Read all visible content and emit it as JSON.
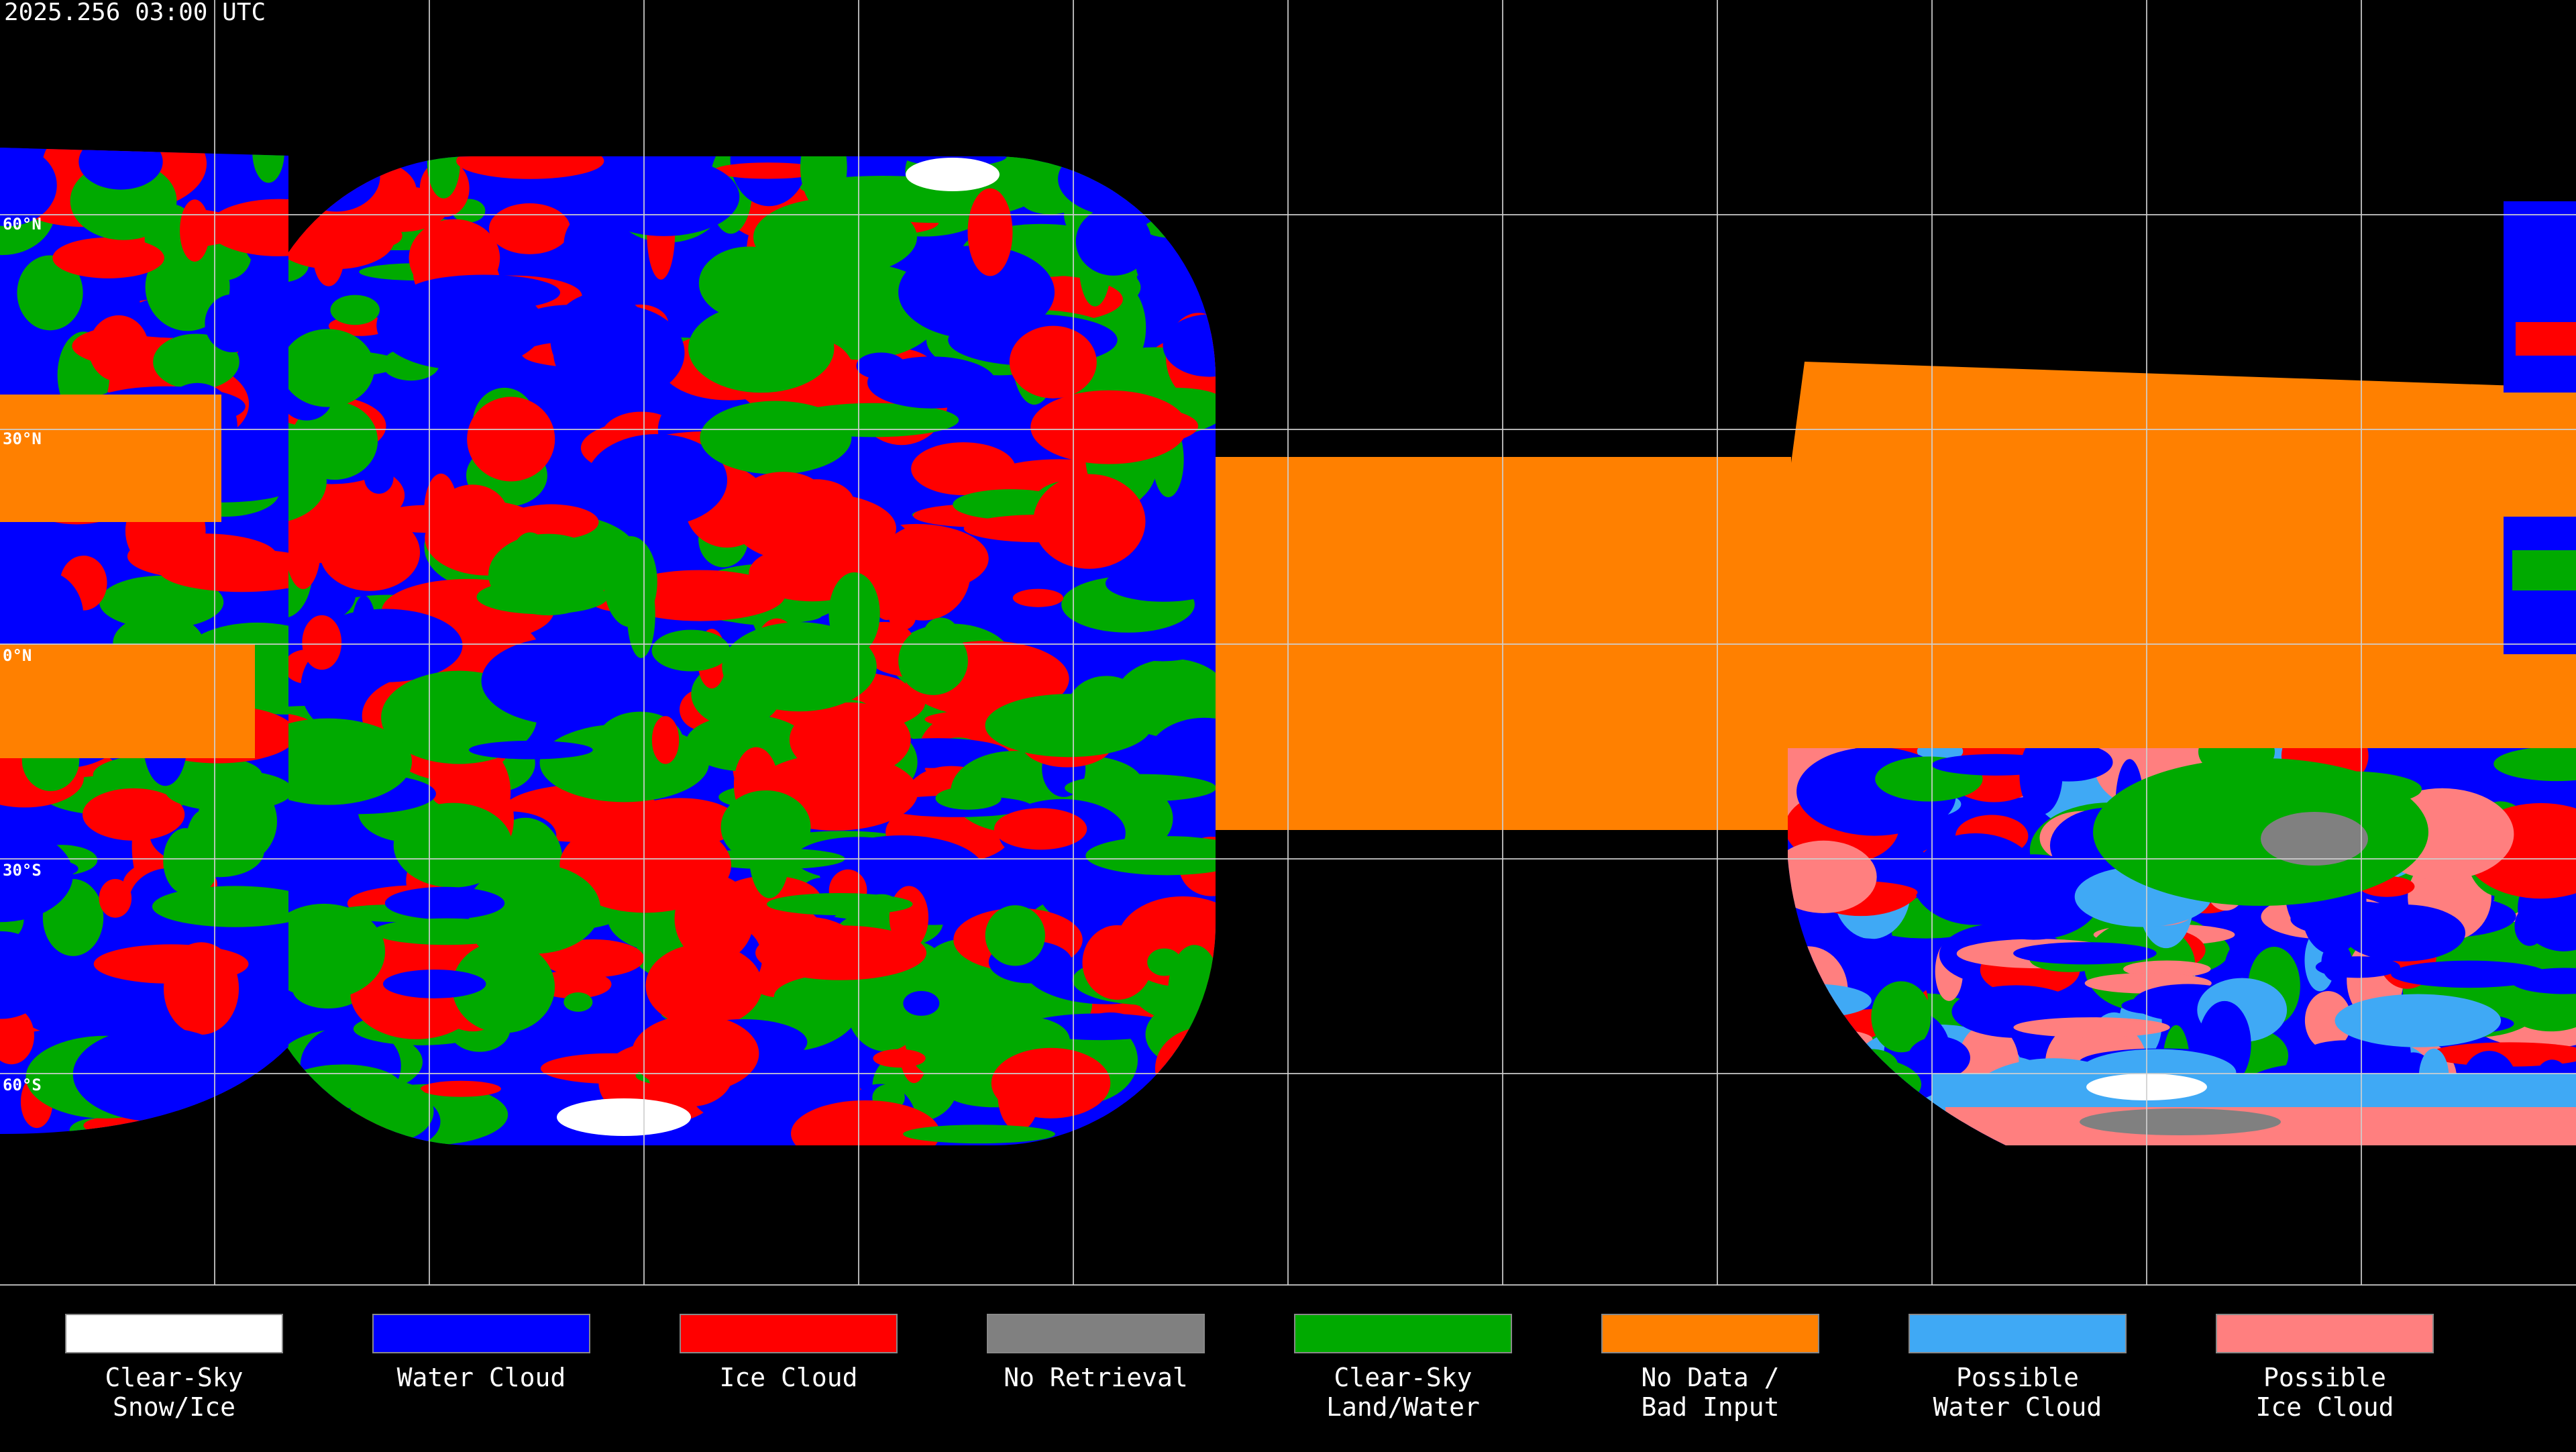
{
  "title": "2025.256 03:00 UTC",
  "lat_labels": [
    "60°N",
    "30°N",
    "0°N",
    "30°S",
    "60°S"
  ],
  "legend": [
    {
      "label": [
        "Clear-Sky",
        "Snow/Ice"
      ],
      "color": "#ffffff"
    },
    {
      "label": [
        "Water Cloud"
      ],
      "color": "#0000ff"
    },
    {
      "label": [
        "Ice Cloud"
      ],
      "color": "#ff0000"
    },
    {
      "label": [
        "No Retrieval"
      ],
      "color": "#808080"
    },
    {
      "label": [
        "Clear-Sky",
        "Land/Water"
      ],
      "color": "#00aa00"
    },
    {
      "label": [
        "No Data /",
        "Bad Input"
      ],
      "color": "#ff8000"
    },
    {
      "label": [
        "Possible",
        "Water Cloud"
      ],
      "color": "#3fa9f5"
    },
    {
      "label": [
        "Possible",
        "Ice Cloud"
      ],
      "color": "#ff7f7f"
    }
  ]
}
